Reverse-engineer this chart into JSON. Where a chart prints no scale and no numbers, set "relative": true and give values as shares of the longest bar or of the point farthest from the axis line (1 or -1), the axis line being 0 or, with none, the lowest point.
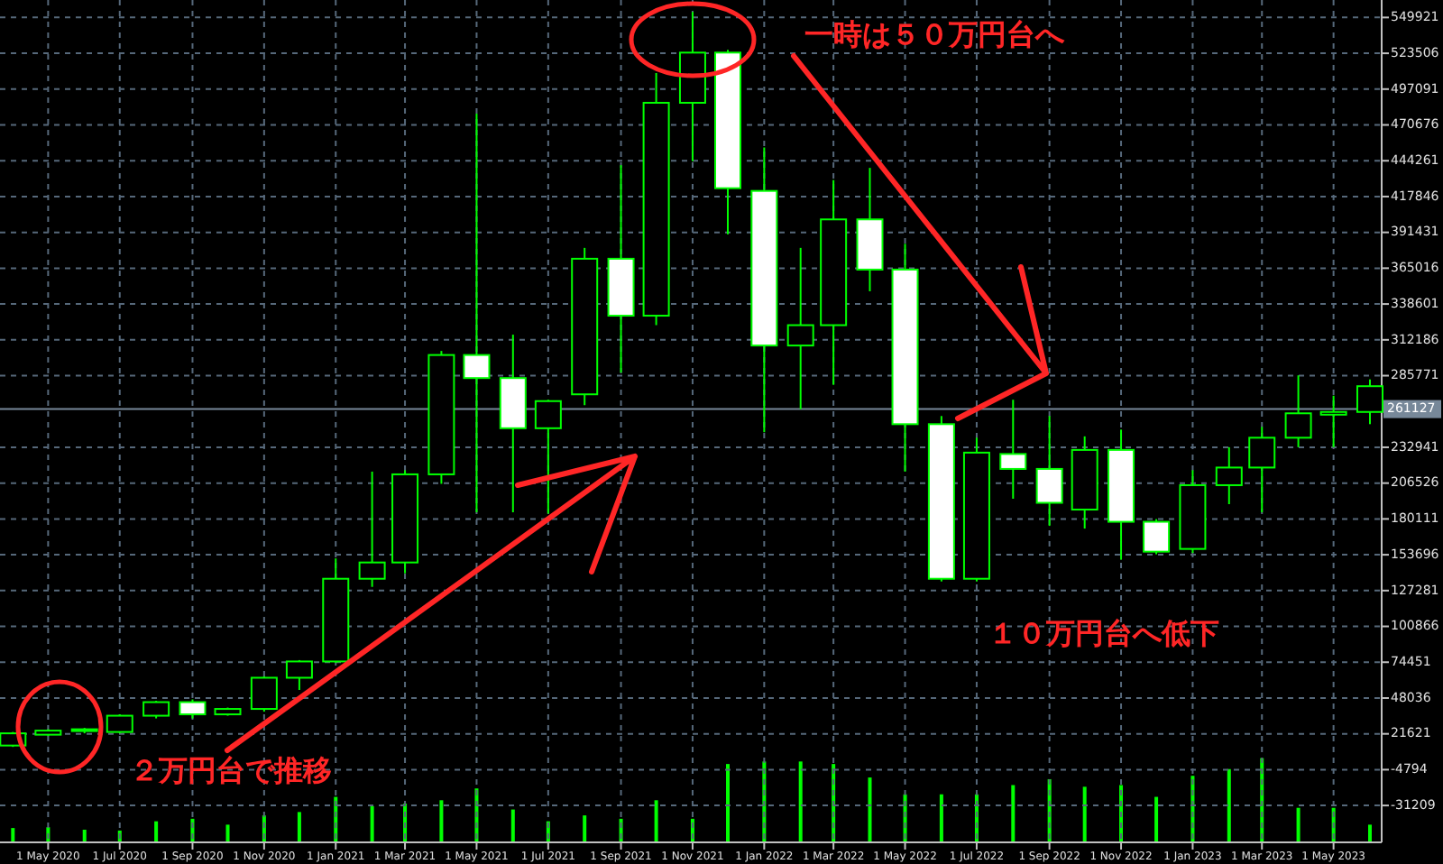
{
  "chart_data": [
    {
      "type": "candlestick",
      "color": "#00ff00",
      "x": [
        "2020-04",
        "2020-05",
        "2020-06",
        "2020-07",
        "2020-08",
        "2020-09",
        "2020-10",
        "2020-11",
        "2020-12",
        "2021-01",
        "2021-02",
        "2021-03",
        "2021-04",
        "2021-05",
        "2021-06",
        "2021-07",
        "2021-08",
        "2021-09",
        "2021-10",
        "2021-11",
        "2021-12",
        "2022-01",
        "2022-02",
        "2022-03",
        "2022-04",
        "2022-05",
        "2022-06",
        "2022-07",
        "2022-08",
        "2022-09",
        "2022-10",
        "2022-11",
        "2022-12",
        "2023-01",
        "2023-02",
        "2023-03",
        "2023-04",
        "2023-05",
        "2023-06"
      ],
      "ohlc": [
        [
          13000,
          23000,
          12000,
          22000
        ],
        [
          21000,
          25000,
          20000,
          24000
        ],
        [
          24000,
          26000,
          22000,
          25000
        ],
        [
          23000,
          36000,
          22000,
          35000
        ],
        [
          35000,
          46000,
          33000,
          45000
        ],
        [
          45000,
          47000,
          33000,
          36000
        ],
        [
          36000,
          41000,
          35000,
          40000
        ],
        [
          40000,
          64000,
          38000,
          63000
        ],
        [
          63000,
          76000,
          54000,
          75000
        ],
        [
          75000,
          151000,
          74000,
          136000
        ],
        [
          136000,
          215000,
          130000,
          148000
        ],
        [
          148000,
          216000,
          140000,
          213000
        ],
        [
          213000,
          304000,
          206000,
          301000
        ],
        [
          301000,
          479000,
          185000,
          284000
        ],
        [
          284000,
          316000,
          185000,
          247000
        ],
        [
          247000,
          268000,
          184000,
          267000
        ],
        [
          272000,
          380000,
          264000,
          372000
        ],
        [
          372000,
          441000,
          288000,
          330000
        ],
        [
          330000,
          509000,
          323000,
          487000
        ],
        [
          487000,
          554000,
          444000,
          524000
        ],
        [
          524000,
          526000,
          390000,
          424000
        ],
        [
          422000,
          454000,
          244000,
          308000
        ],
        [
          308000,
          380000,
          261000,
          323000
        ],
        [
          323000,
          430000,
          279000,
          401000
        ],
        [
          401000,
          439000,
          348000,
          364000
        ],
        [
          364000,
          383000,
          215000,
          250000
        ],
        [
          250000,
          256000,
          134000,
          136000
        ],
        [
          136000,
          240000,
          134000,
          229000
        ],
        [
          228000,
          268000,
          195000,
          217000
        ],
        [
          217000,
          256000,
          175000,
          192000
        ],
        [
          187000,
          241000,
          173000,
          231000
        ],
        [
          231000,
          246000,
          150000,
          178000
        ],
        [
          178000,
          180000,
          154000,
          156000
        ],
        [
          158000,
          216000,
          155000,
          205000
        ],
        [
          205000,
          233000,
          191000,
          218000
        ],
        [
          218000,
          248000,
          185000,
          240000
        ],
        [
          240000,
          286000,
          233000,
          258000
        ],
        [
          257000,
          271000,
          233000,
          259000
        ],
        [
          259000,
          283000,
          250000,
          278000
        ]
      ],
      "xlim": [
        "2020-03-21",
        "2023-06-11"
      ],
      "xticks": [
        {
          "value": "2020-05",
          "label": "1 May 2020"
        },
        {
          "value": "2020-07",
          "label": "1 Jul 2020"
        },
        {
          "value": "2020-09",
          "label": "1 Sep 2020"
        },
        {
          "value": "2020-11",
          "label": "1 Nov 2020"
        },
        {
          "value": "2021-01",
          "label": "1 Jan 2021"
        },
        {
          "value": "2021-03",
          "label": "1 Mar 2021"
        },
        {
          "value": "2021-05",
          "label": "1 May 2021"
        },
        {
          "value": "2021-07",
          "label": "1 Jul 2021"
        },
        {
          "value": "2021-09",
          "label": "1 Sep 2021"
        },
        {
          "value": "2021-11",
          "label": "1 Nov 2021"
        },
        {
          "value": "2022-01",
          "label": "1 Jan 2022"
        },
        {
          "value": "2022-03",
          "label": "1 Mar 2022"
        },
        {
          "value": "2022-05",
          "label": "1 May 2022"
        },
        {
          "value": "2022-07",
          "label": "1 Jul 2022"
        },
        {
          "value": "2022-09",
          "label": "1 Sep 2022"
        },
        {
          "value": "2022-11",
          "label": "1 Nov 2022"
        },
        {
          "value": "2023-01",
          "label": "1 Jan 2023"
        },
        {
          "value": "2023-03",
          "label": "1 Mar 2023"
        },
        {
          "value": "2023-05",
          "label": "1 May 2023"
        }
      ],
      "ylim": [
        -58400,
        562800
      ],
      "yticks": [
        549921,
        523506,
        497091,
        470676,
        444261,
        417846,
        391431,
        365016,
        338601,
        312186,
        285771,
        232941,
        206526,
        180111,
        153696,
        127281,
        100866,
        74451,
        48036,
        21621,
        -4794,
        -31209
      ],
      "grid": true,
      "ref_lines": [
        {
          "axis": "y",
          "value": 261127,
          "label": "261127",
          "color": "#778899"
        }
      ],
      "annotations": [
        "一時は５０万円台へ",
        "１０万円台へ低下",
        "２万円台で推移"
      ]
    },
    {
      "type": "bar",
      "relative": true,
      "color": "#00ff00",
      "x": [
        "2020-04",
        "2020-05",
        "2020-06",
        "2020-07",
        "2020-08",
        "2020-09",
        "2020-10",
        "2020-11",
        "2020-12",
        "2021-01",
        "2021-02",
        "2021-03",
        "2021-04",
        "2021-05",
        "2021-06",
        "2021-07",
        "2021-08",
        "2021-09",
        "2021-10",
        "2021-11",
        "2021-12",
        "2022-01",
        "2022-02",
        "2022-03",
        "2022-04",
        "2022-05",
        "2022-06",
        "2022-07",
        "2022-08",
        "2022-09",
        "2022-10",
        "2022-11",
        "2022-12",
        "2023-01",
        "2023-02",
        "2023-03",
        "2023-04",
        "2023-05",
        "2023-06"
      ],
      "values": [
        0.17,
        0.18,
        0.15,
        0.14,
        0.25,
        0.28,
        0.21,
        0.32,
        0.36,
        0.54,
        0.43,
        0.46,
        0.5,
        0.64,
        0.39,
        0.25,
        0.32,
        0.28,
        0.5,
        0.28,
        0.93,
        0.96,
        0.96,
        0.93,
        0.77,
        0.57,
        0.57,
        0.57,
        0.68,
        0.75,
        0.66,
        0.68,
        0.54,
        0.79,
        0.87,
        1,
        0.41,
        0.41,
        0.21
      ],
      "xlim": [
        "2020-03-21",
        "2023-06-11"
      ]
    }
  ]
}
